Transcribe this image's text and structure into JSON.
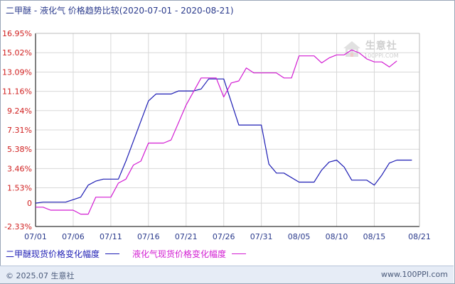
{
  "title": "二甲醚 - 液化气 价格趋势比较(2020-07-01 - 2020-08-21)",
  "watermark": {
    "cn": "生意社",
    "en": "100PPI.COM"
  },
  "footer": {
    "copyright": "© 2025.07 生意社",
    "url": "www.100PPI.com"
  },
  "colors": {
    "series1": "#1c1cb4",
    "series2": "#d21bd2",
    "grid": "#d8d8d8",
    "axis": "#000000",
    "tick_text": "#d02020"
  },
  "chart_data": {
    "type": "line",
    "ylim": [
      -2.33,
      16.95
    ],
    "y_ticks": [
      "16.95%",
      "15.02%",
      "13.09%",
      "11.16%",
      "9.24%",
      "7.31%",
      "5.38%",
      "3.46%",
      "1.53%",
      "0",
      "-2.33%"
    ],
    "y_tick_values": [
      16.95,
      15.02,
      13.09,
      11.16,
      9.24,
      7.31,
      5.38,
      3.46,
      1.53,
      0,
      -2.33
    ],
    "x_ticks": [
      "07/01",
      "07/06",
      "07/11",
      "07/16",
      "07/21",
      "07/26",
      "07/31",
      "08/05",
      "08/10",
      "08/15",
      "08/21"
    ],
    "x_range": [
      0,
      51
    ],
    "x_tick_days": [
      0,
      5,
      10,
      15,
      20,
      25,
      30,
      35,
      40,
      45,
      51
    ],
    "grid": true,
    "legend_position": "bottom-left",
    "series": [
      {
        "name": "二甲醚现货价格变化幅度",
        "points": [
          [
            0,
            0
          ],
          [
            1,
            0.1
          ],
          [
            4,
            0.1
          ],
          [
            6,
            0.6
          ],
          [
            7,
            1.8
          ],
          [
            8,
            2.2
          ],
          [
            9,
            2.4
          ],
          [
            11,
            2.4
          ],
          [
            12,
            4.2
          ],
          [
            15,
            10.2
          ],
          [
            16,
            10.9
          ],
          [
            18,
            10.9
          ],
          [
            19,
            11.2
          ],
          [
            21,
            11.2
          ],
          [
            22,
            11.4
          ],
          [
            23,
            12.4
          ],
          [
            25,
            12.4
          ],
          [
            27,
            7.8
          ],
          [
            30,
            7.8
          ],
          [
            31,
            3.9
          ],
          [
            32,
            3.0
          ],
          [
            33,
            3.0
          ],
          [
            35,
            2.1
          ],
          [
            37,
            2.1
          ],
          [
            38,
            3.3
          ],
          [
            39,
            4.1
          ],
          [
            40,
            4.3
          ],
          [
            41,
            3.6
          ],
          [
            42,
            2.3
          ],
          [
            44,
            2.3
          ],
          [
            45,
            1.8
          ],
          [
            46,
            2.8
          ],
          [
            47,
            4.0
          ],
          [
            48,
            4.3
          ],
          [
            50,
            4.3
          ]
        ]
      },
      {
        "name": "液化气现货价格变化幅度",
        "points": [
          [
            0,
            -0.4
          ],
          [
            1,
            -0.4
          ],
          [
            2,
            -0.7
          ],
          [
            5,
            -0.7
          ],
          [
            6,
            -1.1
          ],
          [
            7,
            -1.1
          ],
          [
            8,
            0.6
          ],
          [
            10,
            0.6
          ],
          [
            11,
            2.0
          ],
          [
            12,
            2.4
          ],
          [
            13,
            3.8
          ],
          [
            14,
            4.2
          ],
          [
            15,
            6.0
          ],
          [
            17,
            6.0
          ],
          [
            18,
            6.3
          ],
          [
            20,
            9.8
          ],
          [
            22,
            12.5
          ],
          [
            24,
            12.5
          ],
          [
            25,
            10.6
          ],
          [
            26,
            12.0
          ],
          [
            27,
            12.2
          ],
          [
            28,
            13.5
          ],
          [
            29,
            13.0
          ],
          [
            32,
            13.0
          ],
          [
            33,
            12.5
          ],
          [
            34,
            12.5
          ],
          [
            35,
            14.7
          ],
          [
            37,
            14.7
          ],
          [
            38,
            14.0
          ],
          [
            39,
            14.5
          ],
          [
            40,
            14.8
          ],
          [
            41,
            14.8
          ],
          [
            42,
            15.3
          ],
          [
            43,
            15.0
          ],
          [
            44,
            14.4
          ],
          [
            45,
            14.1
          ],
          [
            46,
            14.1
          ],
          [
            47,
            13.6
          ],
          [
            48,
            14.2
          ]
        ]
      }
    ]
  }
}
